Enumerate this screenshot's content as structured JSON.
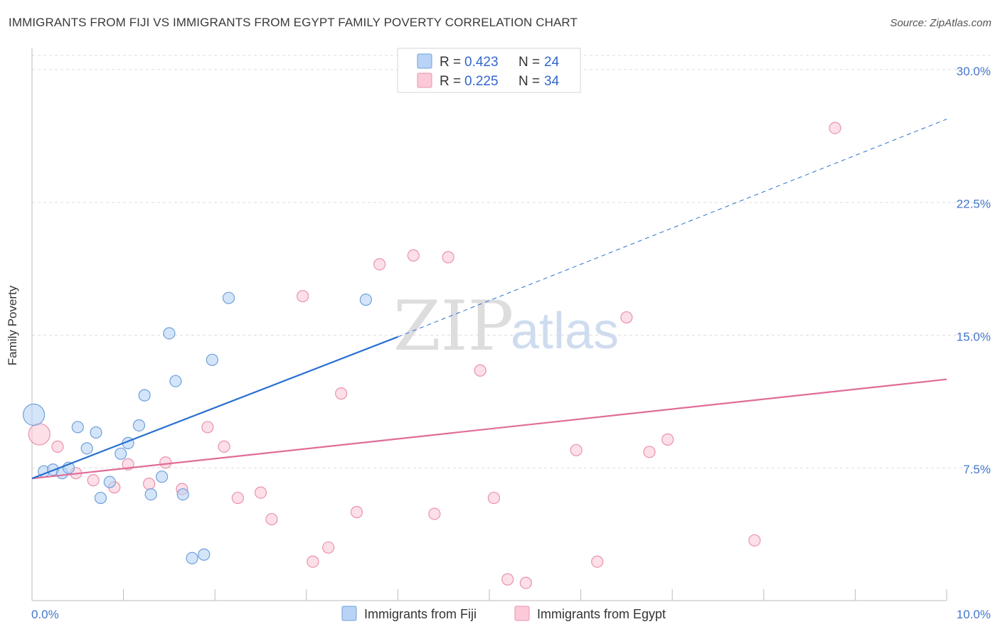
{
  "header": {
    "title": "IMMIGRANTS FROM FIJI VS IMMIGRANTS FROM EGYPT FAMILY POVERTY CORRELATION CHART",
    "source": "Source: ZipAtlas.com"
  },
  "watermark": {
    "zip": "ZIP",
    "atlas": "atlas"
  },
  "colors": {
    "fiji_fill": "#b8d3f5",
    "fiji_stroke": "#6f9fdc",
    "fiji_line": "#2970d0",
    "egypt_fill": "#fbc9d7",
    "egypt_stroke": "#e893ad",
    "egypt_line": "#e06c98",
    "grid": "#dddddd",
    "tick_text": "#4477cc"
  },
  "legend": {
    "fiji": {
      "r_label": "R =",
      "r_value": "0.423",
      "n_label": "N =",
      "n_value": "24"
    },
    "egypt": {
      "r_label": "R =",
      "r_value": "0.225",
      "n_label": "N =",
      "n_value": "34"
    }
  },
  "bottom_legend": {
    "fiji": "Immigrants from Fiji",
    "egypt": "Immigrants from Egypt"
  },
  "chart_data": {
    "type": "scatter",
    "title": "IMMIGRANTS FROM FIJI VS IMMIGRANTS FROM EGYPT FAMILY POVERTY CORRELATION CHART",
    "xlabel": "",
    "ylabel": "Family Poverty",
    "xlim": [
      0,
      10
    ],
    "ylim": [
      0,
      30.8
    ],
    "x_tick_labels": [
      "0.0%",
      "10.0%"
    ],
    "y_ticks": [
      7.5,
      15.0,
      22.5,
      30.0
    ],
    "y_tick_labels": [
      "7.5%",
      "15.0%",
      "22.5%",
      "30.0%"
    ],
    "series": [
      {
        "name": "Immigrants from Fiji",
        "points": [
          {
            "x": 0.02,
            "y": 10.5,
            "size": "large"
          },
          {
            "x": 0.13,
            "y": 7.3
          },
          {
            "x": 0.23,
            "y": 7.4
          },
          {
            "x": 0.33,
            "y": 7.2
          },
          {
            "x": 0.4,
            "y": 7.5
          },
          {
            "x": 0.5,
            "y": 9.8
          },
          {
            "x": 0.6,
            "y": 8.6
          },
          {
            "x": 0.7,
            "y": 9.5
          },
          {
            "x": 0.75,
            "y": 5.8
          },
          {
            "x": 0.85,
            "y": 6.7
          },
          {
            "x": 0.97,
            "y": 8.3
          },
          {
            "x": 1.05,
            "y": 8.9
          },
          {
            "x": 1.17,
            "y": 9.9
          },
          {
            "x": 1.23,
            "y": 11.6
          },
          {
            "x": 1.3,
            "y": 6.0
          },
          {
            "x": 1.42,
            "y": 7.0
          },
          {
            "x": 1.5,
            "y": 15.1
          },
          {
            "x": 1.57,
            "y": 12.4
          },
          {
            "x": 1.65,
            "y": 6.0
          },
          {
            "x": 1.75,
            "y": 2.4
          },
          {
            "x": 1.88,
            "y": 2.6
          },
          {
            "x": 1.97,
            "y": 13.6
          },
          {
            "x": 2.15,
            "y": 17.1
          },
          {
            "x": 3.65,
            "y": 17.0
          }
        ],
        "trend": {
          "x": [
            0.0,
            4.0
          ],
          "y": [
            6.9,
            14.9
          ]
        },
        "trend_extension": {
          "x": [
            4.0,
            10.0
          ],
          "y": [
            14.9,
            27.2
          ]
        }
      },
      {
        "name": "Immigrants from Egypt",
        "points": [
          {
            "x": 0.08,
            "y": 9.4,
            "size": "large"
          },
          {
            "x": 0.28,
            "y": 8.7
          },
          {
            "x": 0.48,
            "y": 7.2
          },
          {
            "x": 0.67,
            "y": 6.8
          },
          {
            "x": 0.9,
            "y": 6.4
          },
          {
            "x": 1.05,
            "y": 7.7
          },
          {
            "x": 1.28,
            "y": 6.6
          },
          {
            "x": 1.46,
            "y": 7.8
          },
          {
            "x": 1.64,
            "y": 6.3
          },
          {
            "x": 1.92,
            "y": 9.8
          },
          {
            "x": 2.1,
            "y": 8.7
          },
          {
            "x": 2.25,
            "y": 5.8
          },
          {
            "x": 2.5,
            "y": 6.1
          },
          {
            "x": 2.62,
            "y": 4.6
          },
          {
            "x": 2.96,
            "y": 17.2
          },
          {
            "x": 3.07,
            "y": 2.2
          },
          {
            "x": 3.24,
            "y": 3.0
          },
          {
            "x": 3.38,
            "y": 11.7
          },
          {
            "x": 3.55,
            "y": 5.0
          },
          {
            "x": 3.8,
            "y": 19.0
          },
          {
            "x": 4.17,
            "y": 19.5
          },
          {
            "x": 4.4,
            "y": 4.9
          },
          {
            "x": 4.55,
            "y": 19.4
          },
          {
            "x": 4.9,
            "y": 13.0
          },
          {
            "x": 5.05,
            "y": 5.8
          },
          {
            "x": 5.2,
            "y": 1.2
          },
          {
            "x": 5.4,
            "y": 1.0
          },
          {
            "x": 5.95,
            "y": 8.5
          },
          {
            "x": 6.18,
            "y": 2.2
          },
          {
            "x": 6.5,
            "y": 16.0
          },
          {
            "x": 6.75,
            "y": 8.4
          },
          {
            "x": 6.95,
            "y": 9.1
          },
          {
            "x": 7.9,
            "y": 3.4
          },
          {
            "x": 8.78,
            "y": 26.7
          }
        ],
        "trend": {
          "x": [
            0.0,
            10.0
          ],
          "y": [
            6.9,
            12.5
          ]
        }
      }
    ]
  }
}
